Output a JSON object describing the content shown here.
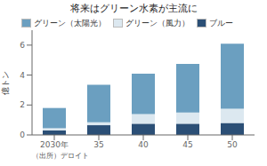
{
  "chart_data": {
    "type": "bar",
    "title": "将来はグリーン水素が主流に",
    "ylabel": "億トン",
    "annotation": "（出所）デロイト",
    "categories": [
      "2030年",
      "35",
      "40",
      "45",
      "50"
    ],
    "series": [
      {
        "name": "ブルー",
        "color": "#2b4f76",
        "values": [
          0.3,
          0.65,
          0.75,
          0.75,
          0.8
        ]
      },
      {
        "name": "グリーン（風力）",
        "color": "#dce8f0",
        "values": [
          0.15,
          0.2,
          0.65,
          0.75,
          0.95
        ]
      },
      {
        "name": "グリーン（太陽光）",
        "color": "#6b9fc0",
        "values": [
          1.35,
          2.5,
          2.7,
          3.25,
          4.35
        ]
      }
    ],
    "stacked": true,
    "legend": "top",
    "grid": false,
    "ylim": [
      0,
      7
    ],
    "yticks": [
      0,
      2,
      4,
      6
    ]
  }
}
